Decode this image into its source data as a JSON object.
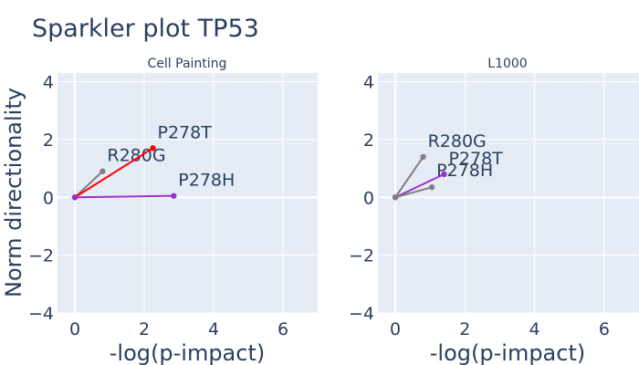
{
  "chart_data": {
    "type": "scatter",
    "title": "Sparkler plot TP53",
    "ylabel": "Norm directionality",
    "xlim": [
      -0.5,
      7
    ],
    "ylim": [
      -4,
      4.3
    ],
    "grid": true,
    "panels": [
      {
        "subtitle": "Cell Painting",
        "xlabel": "-log(p-impact)",
        "x_ticks": [
          "0",
          "2",
          "4",
          "6"
        ],
        "y_ticks": [
          "4",
          "2",
          "0",
          "−2",
          "−4"
        ],
        "series": [
          {
            "label": "R280G",
            "x": 0.8,
            "y": 0.9,
            "color": "#808080"
          },
          {
            "label": "P278T",
            "x": 2.25,
            "y": 1.7,
            "color": "#ff0000"
          },
          {
            "label": "P278H",
            "x": 2.85,
            "y": 0.05,
            "color": "#9932cc"
          }
        ]
      },
      {
        "subtitle": "L1000",
        "xlabel": "-log(p-impact)",
        "x_ticks": [
          "0",
          "2",
          "4",
          "6"
        ],
        "y_ticks": [
          "4",
          "2",
          "0",
          "−2",
          "−4"
        ],
        "series": [
          {
            "label": "R280G",
            "x": 0.8,
            "y": 1.4,
            "color": "#808080"
          },
          {
            "label": "P278T",
            "x": 1.4,
            "y": 0.8,
            "color": "#9932cc"
          },
          {
            "label": "P278H",
            "x": 1.05,
            "y": 0.35,
            "color": "#808080"
          }
        ]
      }
    ]
  }
}
